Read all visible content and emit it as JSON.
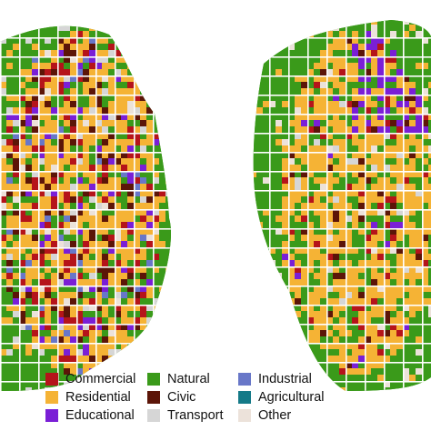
{
  "maps": [
    {
      "name": "left-city-map"
    },
    {
      "name": "right-city-map"
    }
  ],
  "legend": {
    "items": [
      {
        "key": "commercial",
        "label": "Commercial",
        "color": "#b5141a"
      },
      {
        "key": "residential",
        "label": "Residential",
        "color": "#f5b335"
      },
      {
        "key": "educational",
        "label": "Educational",
        "color": "#7a1fd6"
      },
      {
        "key": "natural",
        "label": "Natural",
        "color": "#3a9a1a"
      },
      {
        "key": "civic",
        "label": "Civic",
        "color": "#5c1508"
      },
      {
        "key": "transport",
        "label": "Transport",
        "color": "#d6d6d6"
      },
      {
        "key": "industrial",
        "label": "Industrial",
        "color": "#6877c8"
      },
      {
        "key": "agricultural",
        "label": "Agricultural",
        "color": "#157a88"
      },
      {
        "key": "other",
        "label": "Other",
        "color": "#ece2da"
      }
    ]
  },
  "colors": {
    "road": "#ffffff",
    "background": "#ffffff"
  }
}
